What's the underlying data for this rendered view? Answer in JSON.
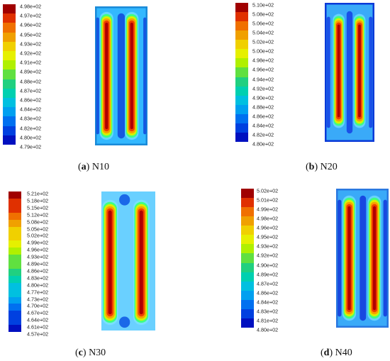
{
  "panels": [
    {
      "id": "a",
      "caption_letter": "a",
      "caption_name": "N10",
      "legend_values": [
        "4.98e+02",
        "4.97e+02",
        "4.96e+02",
        "4.95e+02",
        "4.93e+02",
        "4.92e+02",
        "4.91e+02",
        "4.89e+02",
        "4.88e+02",
        "4.87e+02",
        "4.86e+02",
        "4.84e+02",
        "4.83e+02",
        "4.82e+02",
        "4.80e+02",
        "4.79e+02"
      ]
    },
    {
      "id": "b",
      "caption_letter": "b",
      "caption_name": "N20",
      "legend_values": [
        "5.10e+02",
        "5.08e+02",
        "5.06e+02",
        "5.04e+02",
        "5.02e+02",
        "5.00e+02",
        "4.98e+02",
        "4.96e+02",
        "4.94e+02",
        "4.92e+02",
        "4.90e+02",
        "4.88e+02",
        "4.86e+02",
        "4.84e+02",
        "4.82e+02",
        "4.80e+02"
      ]
    },
    {
      "id": "c",
      "caption_letter": "c",
      "caption_name": "N30",
      "legend_values": [
        "5.21e+02",
        "5.18e+02",
        "5.15e+02",
        "5.12e+02",
        "5.08e+02",
        "5.05e+02",
        "5.02e+02",
        "4.99e+02",
        "4.96e+02",
        "4.93e+02",
        "4.89e+02",
        "4.86e+02",
        "4.83e+02",
        "4.80e+02",
        "4.77e+02",
        "4.73e+02",
        "4.70e+02",
        "4.67e+02",
        "4.64e+02",
        "4.61e+02",
        "4.57e+02"
      ]
    },
    {
      "id": "d",
      "caption_letter": "d",
      "caption_name": "N40",
      "legend_values": [
        "5.02e+02",
        "5.01e+02",
        "4.99e+02",
        "4.98e+02",
        "4.96e+02",
        "4.95e+02",
        "4.93e+02",
        "4.92e+02",
        "4.90e+02",
        "4.89e+02",
        "4.87e+02",
        "4.86e+02",
        "4.84e+02",
        "4.83e+02",
        "4.81e+02",
        "4.80e+02"
      ]
    }
  ],
  "colormap": [
    "#a00000",
    "#e03000",
    "#f07000",
    "#f0a000",
    "#f0d000",
    "#e6f000",
    "#b0f000",
    "#60e040",
    "#20d080",
    "#00d0b0",
    "#00c0e0",
    "#00a0f0",
    "#0070f0",
    "#0040e0",
    "#0010c0"
  ]
}
